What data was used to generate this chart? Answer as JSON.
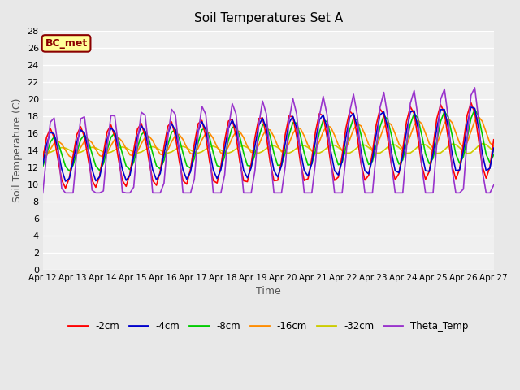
{
  "title": "Soil Temperatures Set A",
  "xlabel": "Time",
  "ylabel": "Soil Temperature (C)",
  "ylim": [
    0,
    28
  ],
  "yticks": [
    0,
    2,
    4,
    6,
    8,
    10,
    12,
    14,
    16,
    18,
    20,
    22,
    24,
    26,
    28
  ],
  "x_labels": [
    "Apr 12",
    "Apr 13",
    "Apr 14",
    "Apr 15",
    "Apr 16",
    "Apr 17",
    "Apr 18",
    "Apr 19",
    "Apr 20",
    "Apr 21",
    "Apr 22",
    "Apr 23",
    "Apr 24",
    "Apr 25",
    "Apr 26",
    "Apr 27"
  ],
  "annotation_text": "BC_met",
  "annotation_bg": "#FFFF99",
  "annotation_border": "#8B0000",
  "annotation_text_color": "#8B0000",
  "bg_color": "#E8E8E8",
  "plot_bg_color": "#F0F0F0",
  "grid_color": "#FFFFFF",
  "series_colors": {
    "-2cm": "#FF0000",
    "-4cm": "#0000CC",
    "-8cm": "#00CC00",
    "-16cm": "#FF8C00",
    "-32cm": "#CCCC00",
    "Theta_Temp": "#9933CC"
  }
}
